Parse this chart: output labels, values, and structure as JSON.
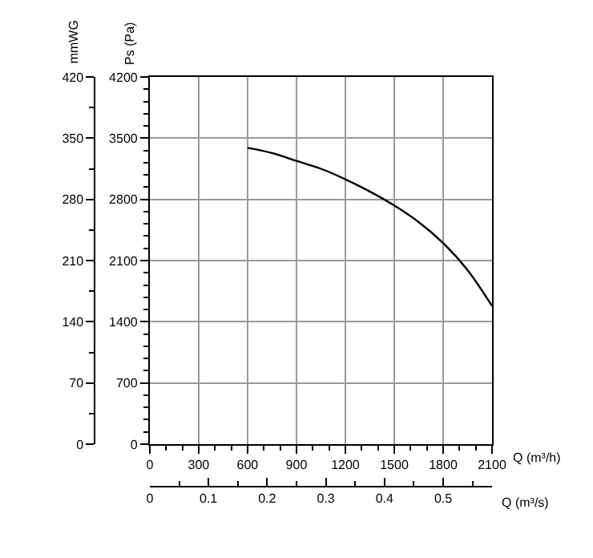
{
  "chart_data": {
    "type": "line",
    "x": [
      600,
      750,
      900,
      1050,
      1200,
      1350,
      1500,
      1650,
      1800,
      1950,
      2100
    ],
    "series": [
      {
        "color": "#000000",
        "values": [
          3390,
          3330,
          3240,
          3150,
          3030,
          2890,
          2730,
          2540,
          2300,
          1990,
          1580
        ]
      }
    ],
    "xlim": [
      0,
      2100
    ],
    "xticks": [
      0,
      300,
      600,
      900,
      1200,
      1500,
      1800,
      2100
    ],
    "ylim": [
      0,
      4200
    ],
    "yticks": [
      0,
      700,
      1400,
      2100,
      2800,
      3500,
      4200
    ],
    "y2lim": [
      0,
      420
    ],
    "y2ticks": [
      0,
      70,
      140,
      210,
      280,
      350,
      420
    ],
    "x2lim": [
      0,
      0.5833
    ],
    "x2ticks": [
      0,
      0.1,
      0.2,
      0.3,
      0.4,
      0.5
    ],
    "xlabel": "Q (m³/h)",
    "x2label": "Q (m³/s)",
    "ylabel": "Ps (Pa)",
    "y2label": "mmWG",
    "grid": true,
    "marker": "none",
    "line_style": "solid"
  }
}
